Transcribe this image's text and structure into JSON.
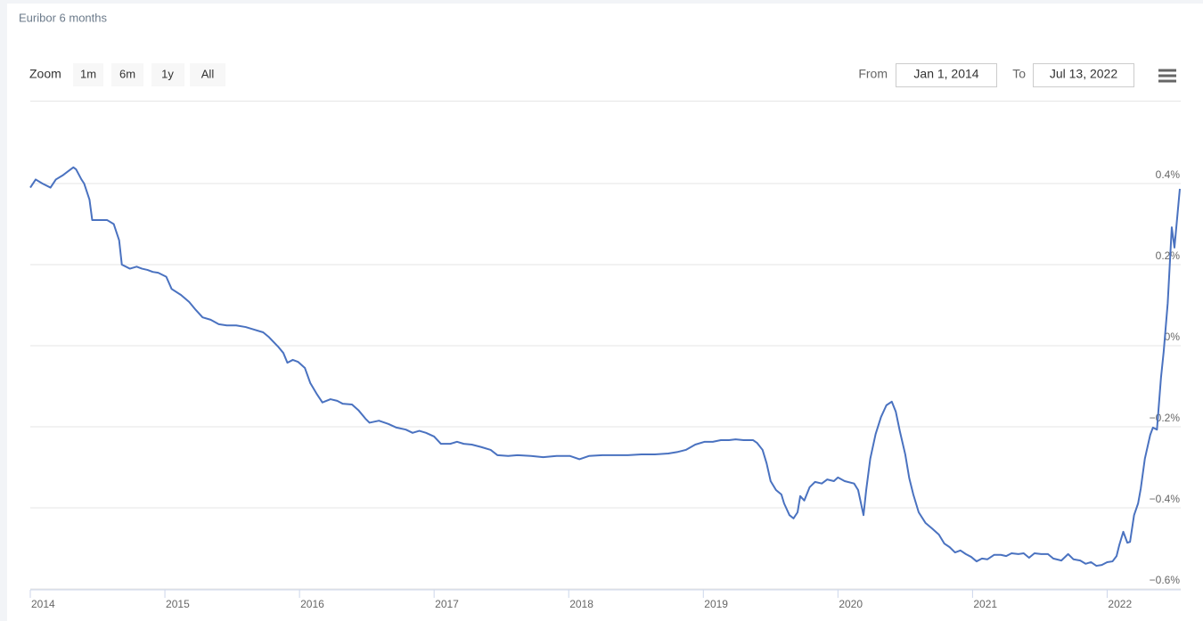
{
  "range_selector": {
    "zoom_label": "Zoom",
    "buttons": [
      "1m",
      "6m",
      "1y",
      "All"
    ],
    "from_label": "From",
    "from_value": "Jan 1, 2014",
    "to_label": "To",
    "to_value": "Jul 13, 2022"
  },
  "chart_data": {
    "type": "line",
    "title": "Euribor 6 months",
    "color": "#4a72c0",
    "grid": true,
    "xlim": [
      2014,
      2022.54
    ],
    "xticks": [
      2014,
      2015,
      2016,
      2017,
      2018,
      2019,
      2020,
      2021,
      2022
    ],
    "ylim": [
      -0.6,
      0.6
    ],
    "yticks": [
      {
        "value": -0.6,
        "label": "−0.6%"
      },
      {
        "value": -0.4,
        "label": "−0.4%"
      },
      {
        "value": -0.2,
        "label": "−0.2%"
      },
      {
        "value": 0,
        "label": "0%"
      },
      {
        "value": 0.2,
        "label": "0.2%"
      },
      {
        "value": 0.4,
        "label": "0.4%"
      }
    ],
    "x": [
      2014.0,
      2014.04,
      2014.09,
      2014.15,
      2014.19,
      2014.24,
      2014.28,
      2014.32,
      2014.34,
      2014.38,
      2014.4,
      2014.44,
      2014.46,
      2014.52,
      2014.57,
      2014.62,
      2014.66,
      2014.68,
      2014.74,
      2014.79,
      2014.83,
      2014.87,
      2014.91,
      2014.95,
      2015.01,
      2015.05,
      2015.12,
      2015.18,
      2015.23,
      2015.28,
      2015.34,
      2015.4,
      2015.46,
      2015.53,
      2015.6,
      2015.66,
      2015.73,
      2015.77,
      2015.84,
      2015.88,
      2015.91,
      2015.95,
      2015.99,
      2016.04,
      2016.08,
      2016.13,
      2016.17,
      2016.23,
      2016.28,
      2016.32,
      2016.39,
      2016.44,
      2016.49,
      2016.52,
      2016.59,
      2016.66,
      2016.72,
      2016.79,
      2016.84,
      2016.89,
      2016.94,
      2017.0,
      2017.05,
      2017.12,
      2017.17,
      2017.22,
      2017.28,
      2017.35,
      2017.42,
      2017.47,
      2017.55,
      2017.62,
      2017.72,
      2017.81,
      2017.91,
      2018.01,
      2018.08,
      2018.15,
      2018.25,
      2018.34,
      2018.44,
      2018.54,
      2018.64,
      2018.74,
      2018.81,
      2018.87,
      2018.94,
      2019.01,
      2019.07,
      2019.13,
      2019.19,
      2019.24,
      2019.3,
      2019.37,
      2019.4,
      2019.44,
      2019.47,
      2019.5,
      2019.54,
      2019.58,
      2019.6,
      2019.64,
      2019.67,
      2019.7,
      2019.72,
      2019.75,
      2019.79,
      2019.83,
      2019.88,
      2019.92,
      2019.97,
      2020.0,
      2020.05,
      2020.12,
      2020.15,
      2020.19,
      2020.21,
      2020.24,
      2020.28,
      2020.32,
      2020.36,
      2020.4,
      2020.43,
      2020.46,
      2020.5,
      2020.53,
      2020.56,
      2020.6,
      2020.65,
      2020.7,
      2020.75,
      2020.79,
      2020.83,
      2020.87,
      2020.91,
      2020.95,
      2020.99,
      2021.03,
      2021.07,
      2021.11,
      2021.16,
      2021.21,
      2021.25,
      2021.29,
      2021.34,
      2021.38,
      2021.42,
      2021.46,
      2021.51,
      2021.56,
      2021.6,
      2021.66,
      2021.71,
      2021.75,
      2021.8,
      2021.84,
      2021.88,
      2021.92,
      2021.96,
      2022.0,
      2022.04,
      2022.07,
      2022.09,
      2022.12,
      2022.15,
      2022.17,
      2022.2,
      2022.23,
      2022.25,
      2022.28,
      2022.32,
      2022.34,
      2022.37,
      2022.4,
      2022.42,
      2022.45,
      2022.48,
      2022.5,
      2022.54
    ],
    "values": [
      0.39,
      0.41,
      0.4,
      0.39,
      0.41,
      0.42,
      0.43,
      0.44,
      0.435,
      0.41,
      0.4,
      0.36,
      0.31,
      0.31,
      0.31,
      0.3,
      0.26,
      0.2,
      0.19,
      0.195,
      0.19,
      0.187,
      0.182,
      0.18,
      0.17,
      0.14,
      0.125,
      0.108,
      0.088,
      0.07,
      0.064,
      0.053,
      0.05,
      0.05,
      0.046,
      0.04,
      0.033,
      0.022,
      -0.002,
      -0.018,
      -0.042,
      -0.035,
      -0.04,
      -0.055,
      -0.092,
      -0.12,
      -0.14,
      -0.132,
      -0.136,
      -0.143,
      -0.145,
      -0.16,
      -0.18,
      -0.19,
      -0.185,
      -0.193,
      -0.202,
      -0.207,
      -0.215,
      -0.21,
      -0.215,
      -0.224,
      -0.242,
      -0.242,
      -0.237,
      -0.242,
      -0.244,
      -0.25,
      -0.257,
      -0.27,
      -0.272,
      -0.27,
      -0.272,
      -0.275,
      -0.272,
      -0.272,
      -0.28,
      -0.272,
      -0.27,
      -0.27,
      -0.27,
      -0.268,
      -0.268,
      -0.266,
      -0.262,
      -0.257,
      -0.244,
      -0.237,
      -0.237,
      -0.233,
      -0.233,
      -0.231,
      -0.233,
      -0.233,
      -0.24,
      -0.257,
      -0.29,
      -0.334,
      -0.356,
      -0.367,
      -0.389,
      -0.418,
      -0.426,
      -0.411,
      -0.371,
      -0.382,
      -0.349,
      -0.336,
      -0.34,
      -0.33,
      -0.334,
      -0.325,
      -0.334,
      -0.34,
      -0.356,
      -0.418,
      -0.356,
      -0.279,
      -0.218,
      -0.176,
      -0.147,
      -0.138,
      -0.163,
      -0.211,
      -0.268,
      -0.327,
      -0.367,
      -0.411,
      -0.437,
      -0.451,
      -0.466,
      -0.488,
      -0.497,
      -0.51,
      -0.505,
      -0.514,
      -0.521,
      -0.532,
      -0.525,
      -0.527,
      -0.516,
      -0.516,
      -0.519,
      -0.512,
      -0.514,
      -0.512,
      -0.523,
      -0.512,
      -0.514,
      -0.514,
      -0.525,
      -0.53,
      -0.514,
      -0.527,
      -0.53,
      -0.538,
      -0.534,
      -0.543,
      -0.541,
      -0.534,
      -0.532,
      -0.519,
      -0.492,
      -0.459,
      -0.486,
      -0.484,
      -0.418,
      -0.389,
      -0.352,
      -0.279,
      -0.22,
      -0.202,
      -0.207,
      -0.079,
      -0.015,
      0.105,
      0.292,
      0.242,
      0.387
    ]
  }
}
